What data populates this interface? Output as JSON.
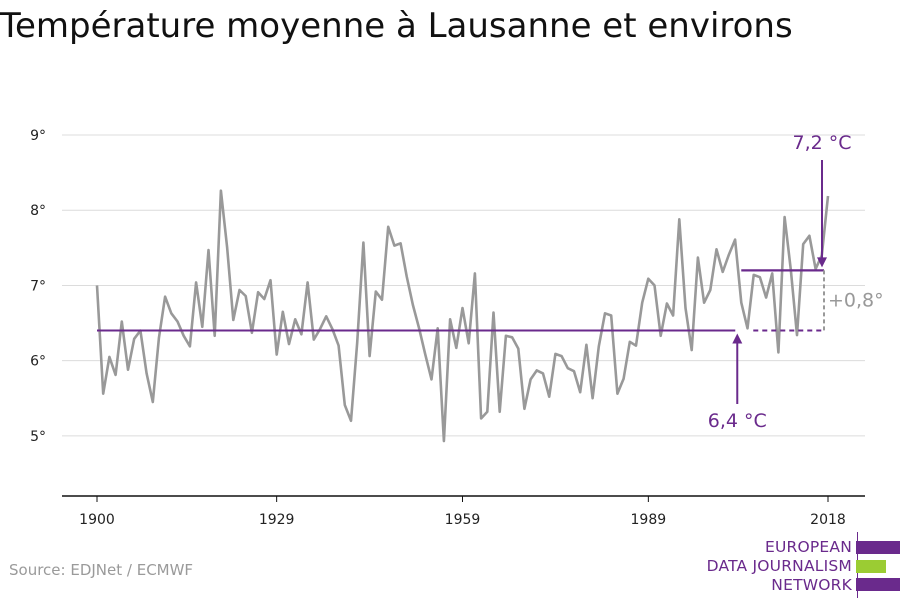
{
  "chart_data": {
    "type": "line",
    "title": "Température moyenne à Lausanne et environs",
    "source": "Source: EDJNet / ECMWF",
    "x_ticks": [
      "1900",
      "1929",
      "1959",
      "1989",
      "2018"
    ],
    "y_ticks": [
      "5°",
      "6°",
      "7°",
      "8°",
      "9°"
    ],
    "xlim": [
      1900,
      2018
    ],
    "ylim": [
      4.2,
      9.2
    ],
    "grid": true,
    "series": [
      {
        "color": "#999999",
        "x": [
          1900,
          1901,
          1902,
          1903,
          1904,
          1905,
          1906,
          1907,
          1908,
          1909,
          1910,
          1911,
          1912,
          1913,
          1914,
          1915,
          1916,
          1917,
          1918,
          1919,
          1920,
          1921,
          1922,
          1923,
          1924,
          1925,
          1926,
          1927,
          1928,
          1929,
          1930,
          1931,
          1932,
          1933,
          1934,
          1935,
          1936,
          1937,
          1938,
          1939,
          1940,
          1941,
          1942,
          1943,
          1944,
          1945,
          1946,
          1947,
          1948,
          1949,
          1950,
          1951,
          1952,
          1953,
          1954,
          1955,
          1956,
          1957,
          1958,
          1959,
          1960,
          1961,
          1962,
          1963,
          1964,
          1965,
          1966,
          1967,
          1968,
          1969,
          1970,
          1971,
          1972,
          1973,
          1974,
          1975,
          1976,
          1977,
          1978,
          1979,
          1980,
          1981,
          1982,
          1983,
          1984,
          1985,
          1986,
          1987,
          1988,
          1989,
          1990,
          1991,
          1992,
          1993,
          1994,
          1995,
          1996,
          1997,
          1998,
          1999,
          2000,
          2001,
          2002,
          2003,
          2004,
          2005,
          2006,
          2007,
          2008,
          2009,
          2010,
          2011,
          2012,
          2013,
          2014,
          2015,
          2016,
          2017,
          2018
        ],
        "values": [
          7.0,
          5.56,
          6.05,
          5.81,
          6.52,
          5.88,
          6.29,
          6.4,
          5.83,
          5.45,
          6.3,
          6.85,
          6.63,
          6.52,
          6.33,
          6.19,
          7.04,
          6.45,
          7.47,
          6.33,
          8.26,
          7.51,
          6.54,
          6.94,
          6.86,
          6.37,
          6.91,
          6.82,
          7.07,
          6.08,
          6.65,
          6.22,
          6.55,
          6.35,
          7.04,
          6.28,
          6.42,
          6.59,
          6.42,
          6.2,
          5.41,
          5.2,
          6.24,
          7.57,
          6.06,
          6.92,
          6.81,
          7.78,
          7.53,
          7.56,
          7.12,
          6.74,
          6.43,
          6.08,
          5.75,
          6.43,
          4.93,
          6.55,
          6.17,
          6.7,
          6.23,
          7.16,
          5.23,
          5.32,
          6.64,
          5.32,
          6.33,
          6.31,
          6.16,
          5.36,
          5.75,
          5.87,
          5.83,
          5.52,
          6.09,
          6.06,
          5.9,
          5.86,
          5.58,
          6.21,
          5.5,
          6.19,
          6.63,
          6.6,
          5.56,
          5.76,
          6.25,
          6.2,
          6.77,
          7.09,
          7.0,
          6.33,
          6.76,
          6.6,
          7.88,
          6.7,
          6.14,
          7.37,
          6.77,
          6.94,
          7.48,
          7.18,
          7.41,
          7.61,
          6.77,
          6.43,
          7.14,
          7.11,
          6.84,
          7.16,
          6.11,
          7.91,
          7.21,
          6.34,
          7.55,
          7.66,
          7.22,
          7.4,
          8.19
        ]
      }
    ],
    "reference_lines": [
      {
        "label": "6,4 °C",
        "value": 6.4,
        "x_from": 1900,
        "x_to": 2004,
        "dashed_to": 2018,
        "color": "#6a2a8c"
      },
      {
        "label": "7,2 °C",
        "value": 7.2,
        "x_from": 2004,
        "x_to": 2018,
        "color": "#6a2a8c"
      }
    ],
    "difference_label": "+0,8°"
  },
  "logo": {
    "lines": [
      "EUROPEAN",
      "DATA JOURNALISM",
      "NETWORK"
    ],
    "bar_colors": [
      "#6a2a8c",
      "#9bcc33",
      "#6a2a8c"
    ]
  }
}
